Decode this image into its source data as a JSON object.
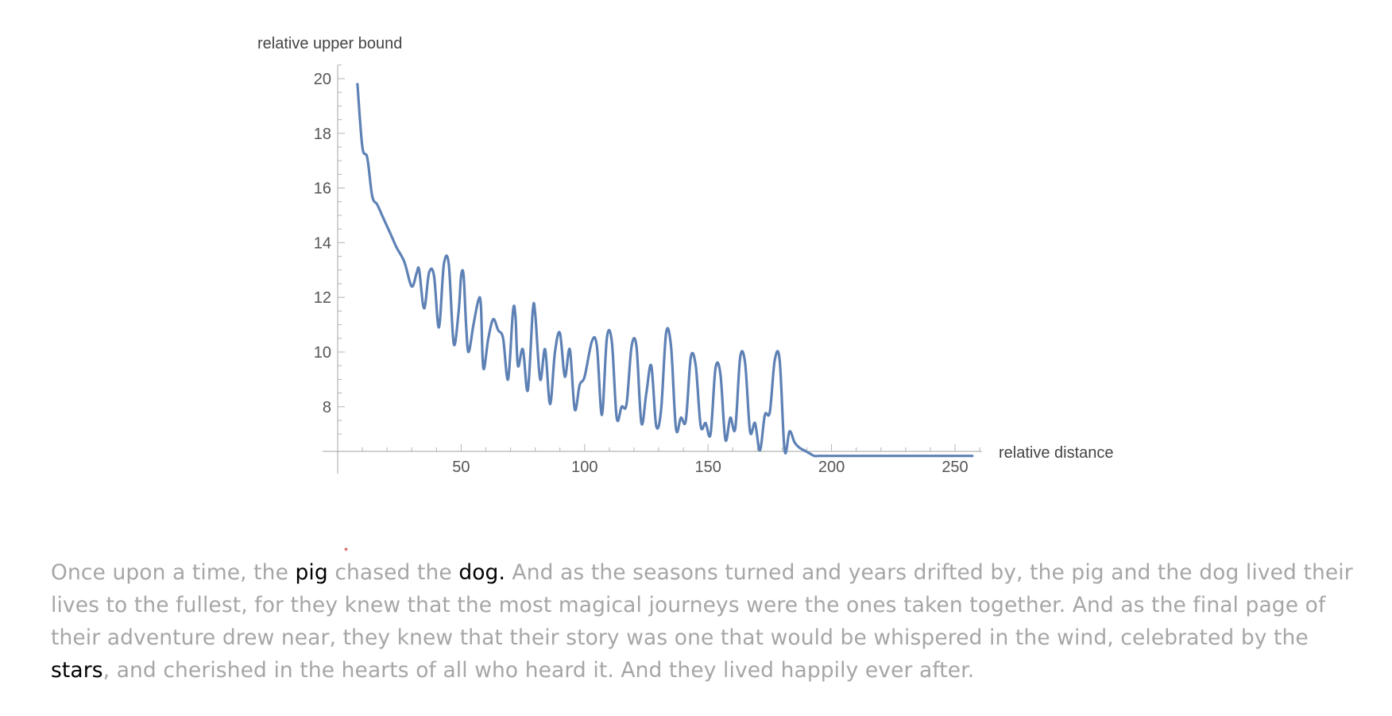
{
  "chart_data": {
    "type": "line",
    "xlabel": "relative distance",
    "ylabel": "relative upper bound",
    "xlim": [
      0,
      260
    ],
    "ylim": [
      6.5,
      20.5
    ],
    "x_ticks": [
      50,
      100,
      150,
      200,
      250
    ],
    "y_ticks": [
      8,
      10,
      12,
      14,
      16,
      18,
      20
    ],
    "grid": false,
    "color": "#5e81b5",
    "series": [
      {
        "x": [
          8,
          10,
          12,
          14,
          16,
          18,
          20,
          22,
          24,
          27,
          30,
          32,
          33,
          35,
          37,
          39,
          41,
          43,
          45,
          47,
          49,
          50,
          51,
          52,
          53,
          55,
          57,
          58,
          59,
          61,
          63,
          65,
          67,
          69,
          71,
          72,
          73,
          75,
          77,
          79,
          80,
          82,
          84,
          86,
          88,
          90,
          92,
          94,
          96,
          98,
          100,
          103,
          105,
          107,
          109,
          111,
          113,
          115,
          117,
          119,
          121,
          123,
          125,
          127,
          129,
          131,
          133,
          135,
          137,
          139,
          141,
          143,
          145,
          147,
          149,
          151,
          153,
          155,
          157,
          159,
          161,
          163,
          165,
          167,
          169,
          171,
          173,
          175,
          177,
          179,
          181,
          183,
          185,
          187,
          189,
          191,
          193,
          195,
          197,
          199,
          201,
          203,
          205,
          207,
          209,
          211,
          213,
          215,
          217,
          219,
          221,
          223,
          225,
          227,
          229,
          231,
          233,
          235,
          237,
          239,
          241,
          243,
          245,
          247,
          249,
          251,
          253,
          255,
          257
        ],
        "y": [
          19.8,
          17.5,
          17.1,
          15.7,
          15.4,
          15.0,
          14.6,
          14.2,
          13.8,
          13.3,
          12.4,
          12.9,
          13.0,
          11.6,
          12.9,
          12.8,
          10.9,
          13.2,
          13.2,
          10.3,
          11.5,
          12.8,
          12.8,
          11.0,
          10.0,
          11.0,
          11.9,
          11.7,
          9.4,
          10.5,
          11.2,
          10.8,
          10.5,
          9.0,
          11.5,
          11.3,
          9.5,
          10.1,
          8.6,
          11.5,
          11.4,
          9.0,
          10.1,
          8.1,
          10.0,
          10.7,
          9.1,
          10.1,
          7.9,
          8.8,
          9.1,
          10.4,
          10.2,
          7.7,
          10.5,
          10.4,
          7.6,
          8.0,
          8.1,
          10.2,
          10.2,
          7.4,
          8.5,
          9.5,
          7.3,
          7.9,
          10.7,
          10.2,
          7.2,
          7.6,
          7.5,
          9.8,
          9.5,
          7.3,
          7.4,
          7.0,
          9.4,
          9.2,
          6.8,
          7.6,
          7.2,
          9.8,
          9.6,
          7.1,
          7.4,
          6.4,
          7.7,
          7.8,
          9.7,
          9.7,
          6.4,
          7.1,
          6.7,
          6.5,
          6.4,
          6.3,
          6.2,
          6.2,
          6.2,
          6.2,
          6.2,
          6.2,
          6.2,
          6.2,
          6.2,
          6.2,
          6.2,
          6.2,
          6.2,
          6.2,
          6.2,
          6.2,
          6.2,
          6.2,
          6.2,
          6.2,
          6.2,
          6.2,
          6.2,
          6.2,
          6.2,
          6.2,
          6.2,
          6.2,
          6.2,
          6.2,
          6.2,
          6.2,
          6.2
        ]
      }
    ]
  },
  "story": {
    "segments": [
      {
        "text": "Once upon a time, the ",
        "highlight": false
      },
      {
        "text": "pig",
        "highlight": true
      },
      {
        "text": " chased the ",
        "highlight": false
      },
      {
        "text": "dog.",
        "highlight": true
      },
      {
        "text": " And as the seasons turned and years drifted by, the pig and the dog lived their lives to the fullest, for they knew that the most magical journeys were the ones taken together. And as the final page of their adventure drew near, they knew that their story was one that would be whispered in the wind, celebrated by the ",
        "highlight": false
      },
      {
        "text": "stars",
        "highlight": true
      },
      {
        "text": ", and cherished in the hearts of all who heard it. And they lived happily ever after.",
        "highlight": false
      }
    ],
    "marker": "*"
  }
}
